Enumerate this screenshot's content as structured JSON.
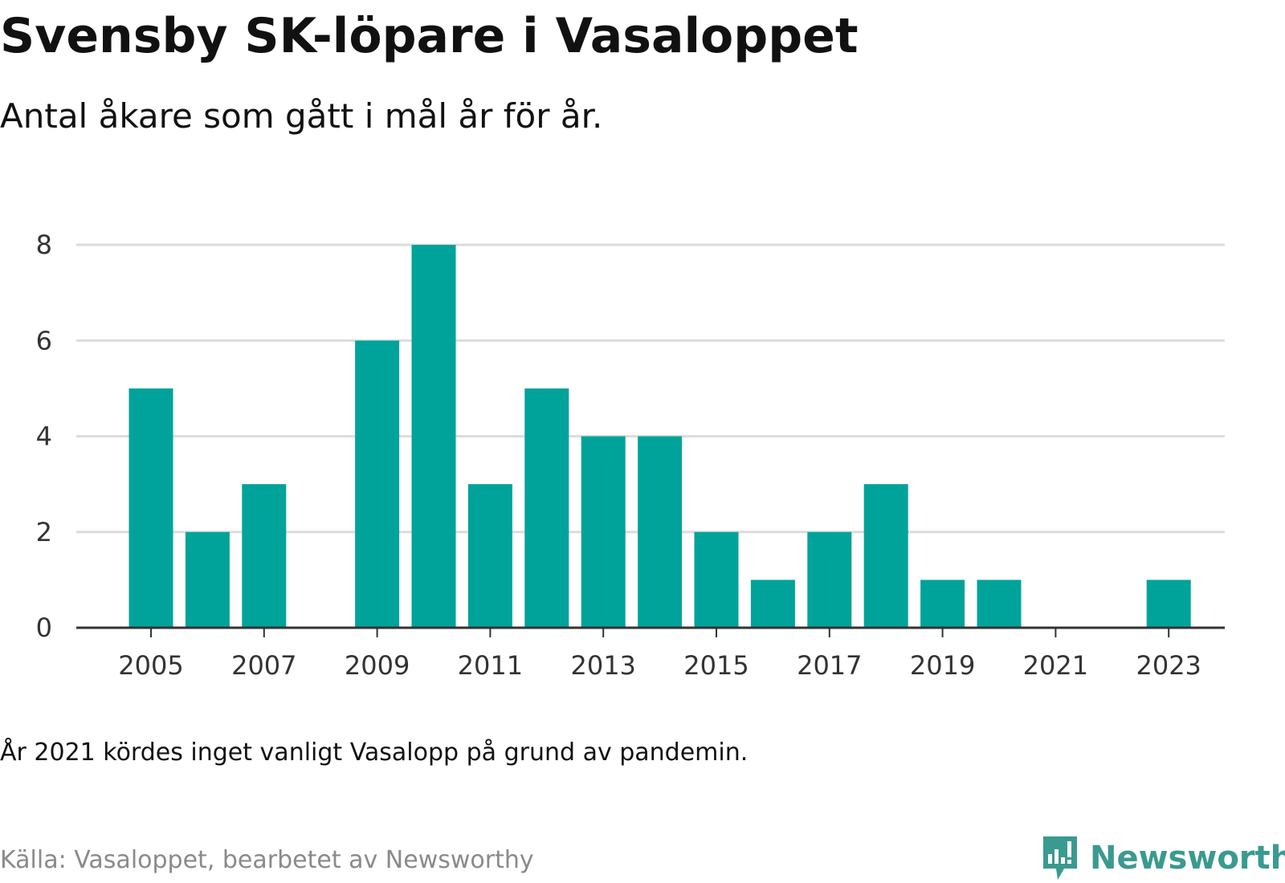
{
  "title": "Svensby SK-löpare i Vasaloppet",
  "subtitle": "Antal åkare som gått i mål år för år.",
  "note": "År 2021 kördes inget vanligt Vasalopp på grund av pandemin.",
  "source": "Källa: Vasaloppet, bearbetet av Newsworthy",
  "brand": {
    "name": "Newsworthy",
    "icon": "newsworthy-logo-icon"
  },
  "colors": {
    "bar": "#00a39a",
    "grid": "#dcdcdc",
    "axis": "#333333",
    "brand": "#3a9a8f"
  },
  "chart_data": {
    "type": "bar",
    "categories": [
      "2005",
      "2006",
      "2007",
      "2008",
      "2009",
      "2010",
      "2011",
      "2012",
      "2013",
      "2014",
      "2015",
      "2016",
      "2017",
      "2018",
      "2019",
      "2020",
      "2021",
      "2022",
      "2023"
    ],
    "values": [
      5,
      2,
      3,
      0,
      6,
      8,
      3,
      5,
      4,
      4,
      2,
      1,
      2,
      3,
      1,
      1,
      0,
      0,
      1
    ],
    "x_tick_labels": [
      "2005",
      "2007",
      "2009",
      "2011",
      "2013",
      "2015",
      "2017",
      "2019",
      "2021",
      "2023"
    ],
    "y_ticks": [
      0,
      2,
      4,
      6,
      8
    ],
    "ylim": [
      0,
      8
    ],
    "grid": true,
    "title": "Svensby SK-löpare i Vasaloppet",
    "xlabel": "",
    "ylabel": ""
  }
}
